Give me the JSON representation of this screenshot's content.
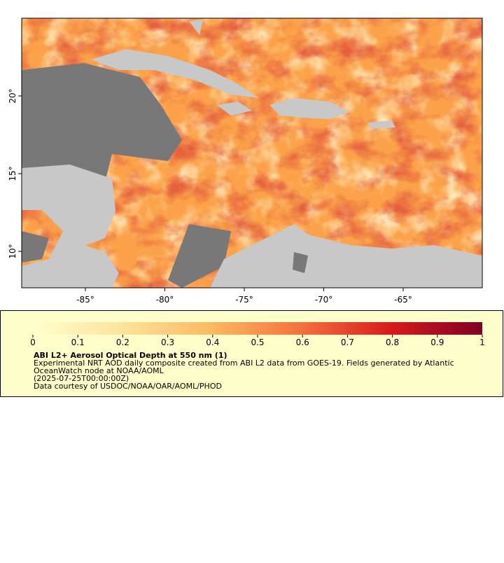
{
  "map": {
    "lon_ticks": [
      {
        "value": -85,
        "label": "-85°"
      },
      {
        "value": -80,
        "label": "-80°"
      },
      {
        "value": -75,
        "label": "-75°"
      },
      {
        "value": -70,
        "label": "-70°"
      },
      {
        "value": -65,
        "label": "-65°"
      }
    ],
    "lat_ticks": [
      {
        "value": 20,
        "label": "20°"
      },
      {
        "value": 15,
        "label": "15°"
      },
      {
        "value": 10,
        "label": "10°"
      }
    ]
  },
  "legend": {
    "ticks": [
      0,
      0.1,
      0.2,
      0.3,
      0.4,
      0.5,
      0.6,
      0.7,
      0.8,
      0.9,
      1
    ],
    "title": "ABI L2+ Aerosol Optical Depth at 550 nm (1)",
    "lines": [
      "Experimental NRT AOD daily composite created from ABI L2 data from GOES-19. Fields generated by Atlantic",
      "OceanWatch node at NOAA/AOML",
      "(2025-07-25T00:00:00Z)",
      "Data courtesy of USDOC/NOAA/OAR/AOML/PHOD"
    ]
  }
}
